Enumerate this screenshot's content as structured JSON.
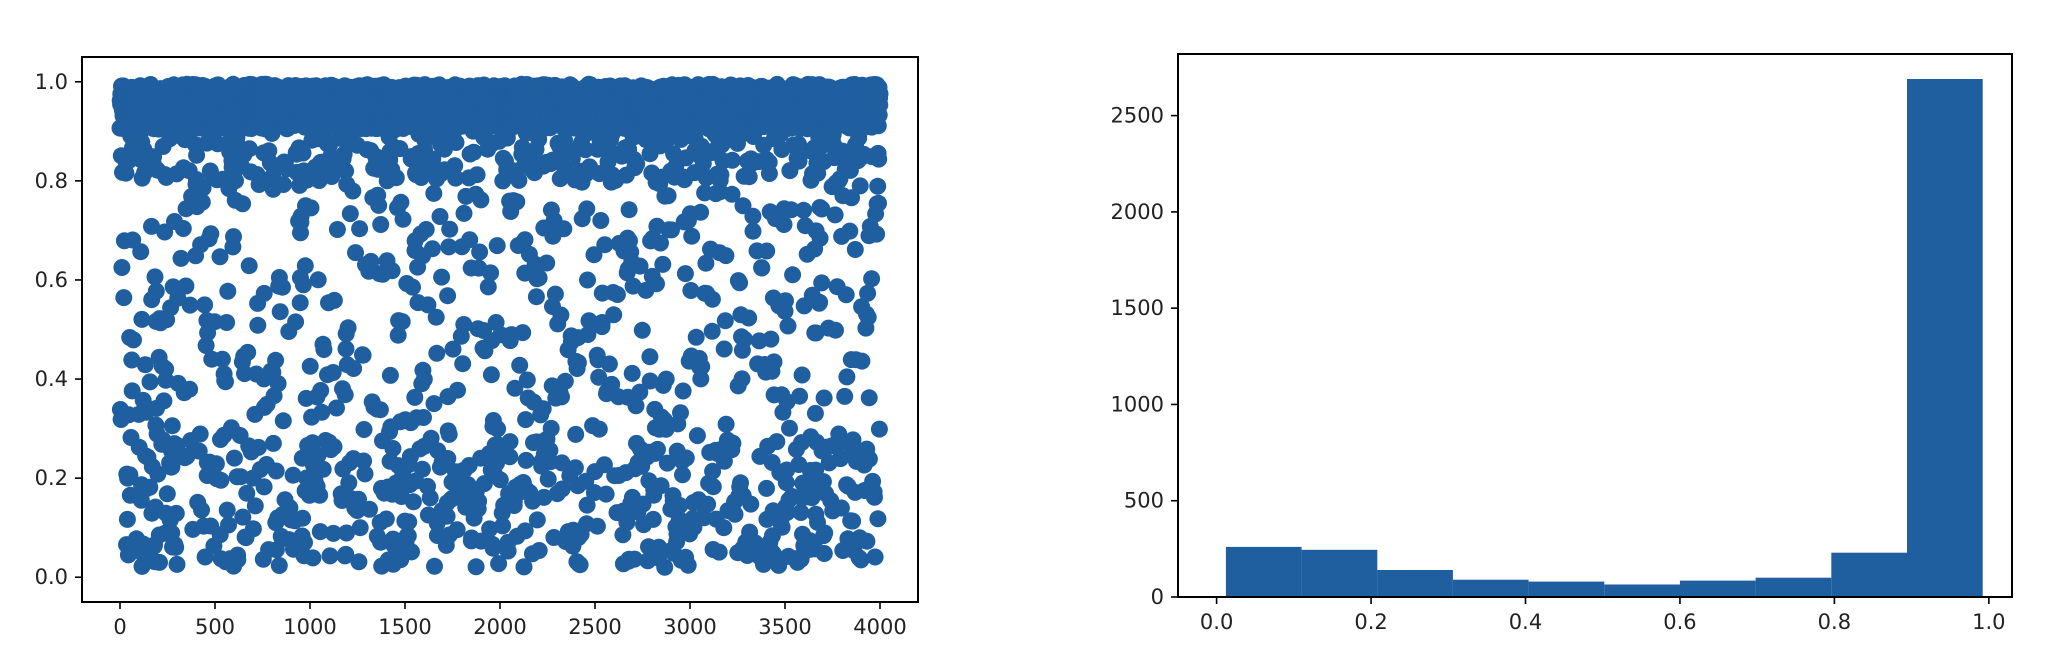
{
  "chart_data": [
    {
      "type": "scatter",
      "title": "",
      "xlabel": "",
      "ylabel": "",
      "xlim": [
        -200,
        4200
      ],
      "ylim": [
        -0.05,
        1.05
      ],
      "xticks": [
        0,
        500,
        1000,
        1500,
        2000,
        2500,
        3000,
        3500,
        4000
      ],
      "xtick_labels": [
        "0",
        "500",
        "1000",
        "1500",
        "2000",
        "2500",
        "3000",
        "3500",
        "4000"
      ],
      "yticks": [
        0.0,
        0.2,
        0.4,
        0.6,
        0.8,
        1.0
      ],
      "ytick_labels": [
        "0.0",
        "0.2",
        "0.4",
        "0.6",
        "0.8",
        "1.0"
      ],
      "grid": false,
      "legend": "none",
      "color": "#1f5fa0",
      "point_count": 4000,
      "x_range": [
        0,
        4000
      ],
      "distribution": "y mostly clustered near 1.0 with a secondary dense band between 0.0 and 0.3 and sparse points in between"
    },
    {
      "type": "bar",
      "title": "",
      "xlabel": "",
      "ylabel": "",
      "xlim": [
        -0.05,
        1.03
      ],
      "ylim": [
        0,
        2820
      ],
      "xticks": [
        0.0,
        0.2,
        0.4,
        0.6,
        0.8,
        1.0
      ],
      "xtick_labels": [
        "0.0",
        "0.2",
        "0.4",
        "0.6",
        "0.8",
        "1.0"
      ],
      "yticks": [
        0,
        500,
        1000,
        1500,
        2000,
        2500
      ],
      "ytick_labels": [
        "0",
        "500",
        "1000",
        "1500",
        "2000",
        "2500"
      ],
      "grid": false,
      "legend": "none",
      "color": "#1f5fa0",
      "bin_edges": [
        0.012,
        0.11,
        0.208,
        0.306,
        0.404,
        0.502,
        0.6,
        0.698,
        0.796,
        0.894,
        0.992
      ],
      "values": [
        260,
        245,
        140,
        90,
        80,
        65,
        85,
        100,
        230,
        2690
      ]
    }
  ]
}
